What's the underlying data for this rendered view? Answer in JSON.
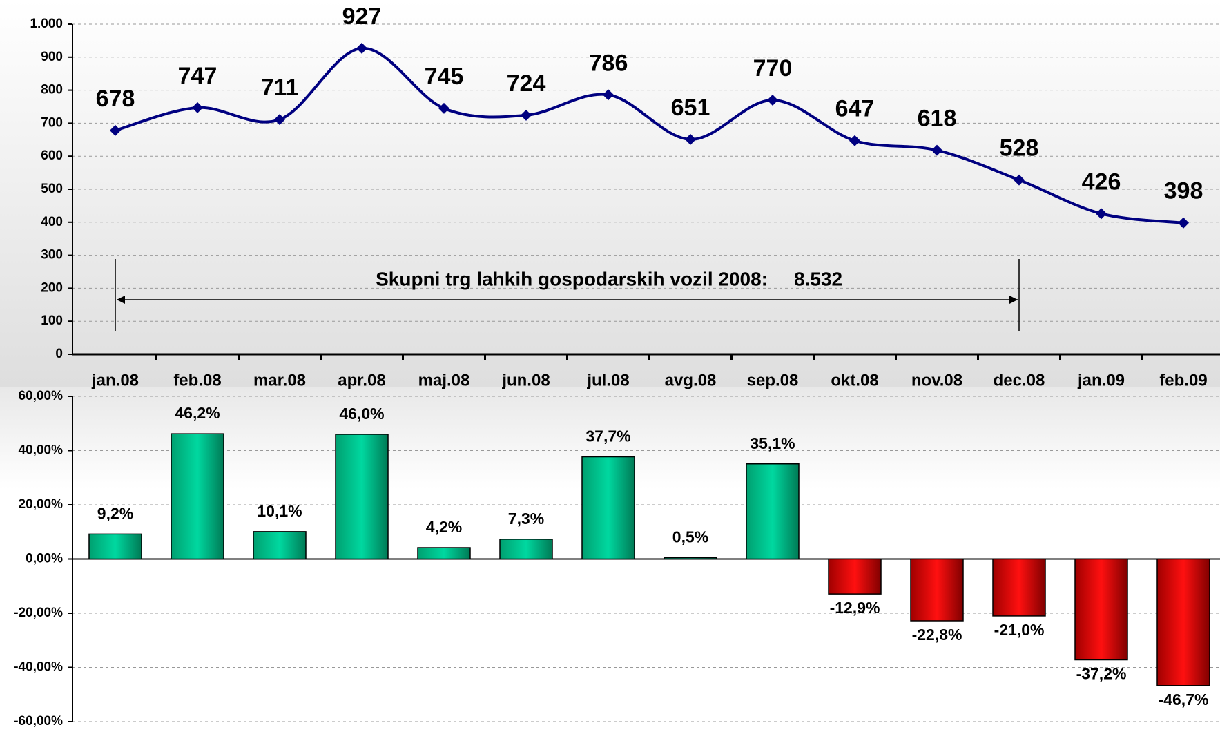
{
  "chart_data": [
    {
      "type": "line",
      "categories": [
        "jan.08",
        "feb.08",
        "mar.08",
        "apr.08",
        "maj.08",
        "jun.08",
        "jul.08",
        "avg.08",
        "sep.08",
        "okt.08",
        "nov.08",
        "dec.08",
        "jan.09",
        "feb.09"
      ],
      "values": [
        678,
        747,
        711,
        927,
        745,
        724,
        786,
        651,
        770,
        647,
        618,
        528,
        426,
        398
      ],
      "color": "#000080",
      "ylim": [
        0,
        1000
      ],
      "yticks": [
        0,
        100,
        200,
        300,
        400,
        500,
        600,
        700,
        800,
        900,
        {
          "value": 1000,
          "label": "1.000"
        }
      ],
      "grid": true,
      "annotation": {
        "text": "Skupni trg lahkih gospodarskih vozil 2008:",
        "value_text": "8.532"
      }
    },
    {
      "type": "bar",
      "values": [
        9.2,
        46.2,
        10.1,
        46.0,
        4.2,
        7.3,
        37.7,
        0.5,
        35.1,
        -12.9,
        -22.8,
        -21.0,
        -37.2,
        -46.7
      ],
      "value_labels": [
        "9,2%",
        "46,2%",
        "10,1%",
        "46,0%",
        "4,2%",
        "7,3%",
        "37,7%",
        "0,5%",
        "35,1%",
        "-12,9%",
        "-22,8%",
        "-21,0%",
        "-37,2%",
        "-46,7%"
      ],
      "color": "#00c896",
      "negative_color": "#e00000",
      "ylim": [
        -60,
        60
      ],
      "yticks": [
        {
          "value": -60,
          "label": "-60,00%"
        },
        {
          "value": -40,
          "label": "-40,00%"
        },
        {
          "value": -20,
          "label": "-20,00%"
        },
        {
          "value": 0,
          "label": "0,00%"
        },
        {
          "value": 20,
          "label": "20,00%"
        },
        {
          "value": 40,
          "label": "40,00%"
        },
        {
          "value": 60,
          "label": "60,00%"
        }
      ],
      "grid": true
    }
  ]
}
